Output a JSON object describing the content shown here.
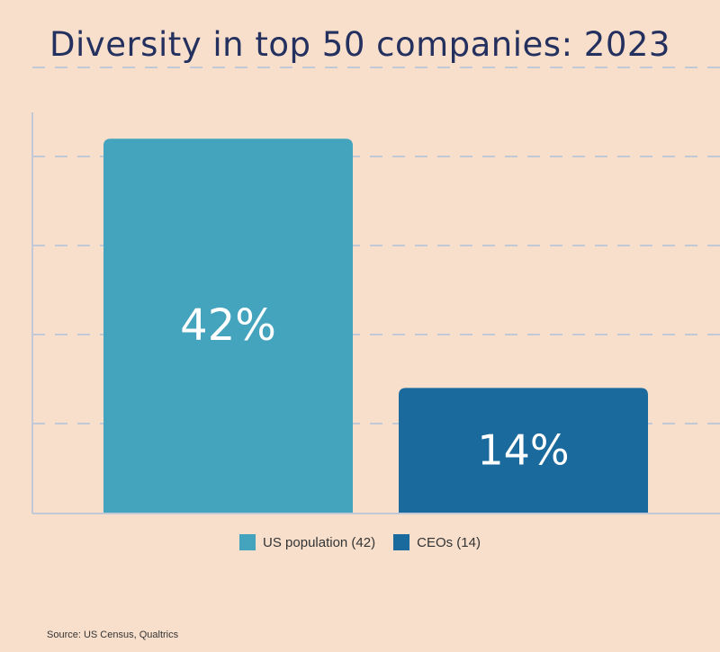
{
  "colors": {
    "background": "#f8dfcc",
    "title": "#24305e",
    "series1": "#44a3bd",
    "series2": "#1a6a9d",
    "grid": "#c2c9d6",
    "axis": "#c2c9d6",
    "bar_text": "#ffffff",
    "legend_text": "#333333",
    "source_text": "#333333"
  },
  "chart_data": {
    "type": "bar",
    "title": "Diversity in top 50 companies: 2023",
    "categories": [
      "US population",
      "CEOs"
    ],
    "values": [
      42,
      14
    ],
    "data_labels": [
      "42%",
      "14%"
    ],
    "legend": [
      {
        "label": "US population (42)",
        "color_key": "series1"
      },
      {
        "label": "CEOs (14)",
        "color_key": "series2"
      }
    ],
    "ylim": [
      0,
      50
    ],
    "grid_values": [
      10,
      20,
      30,
      40,
      50
    ],
    "grid": true,
    "xlabel": "",
    "ylabel": "",
    "legend_position": "bottom-center"
  },
  "source": "Source: US Census, Qualtrics"
}
